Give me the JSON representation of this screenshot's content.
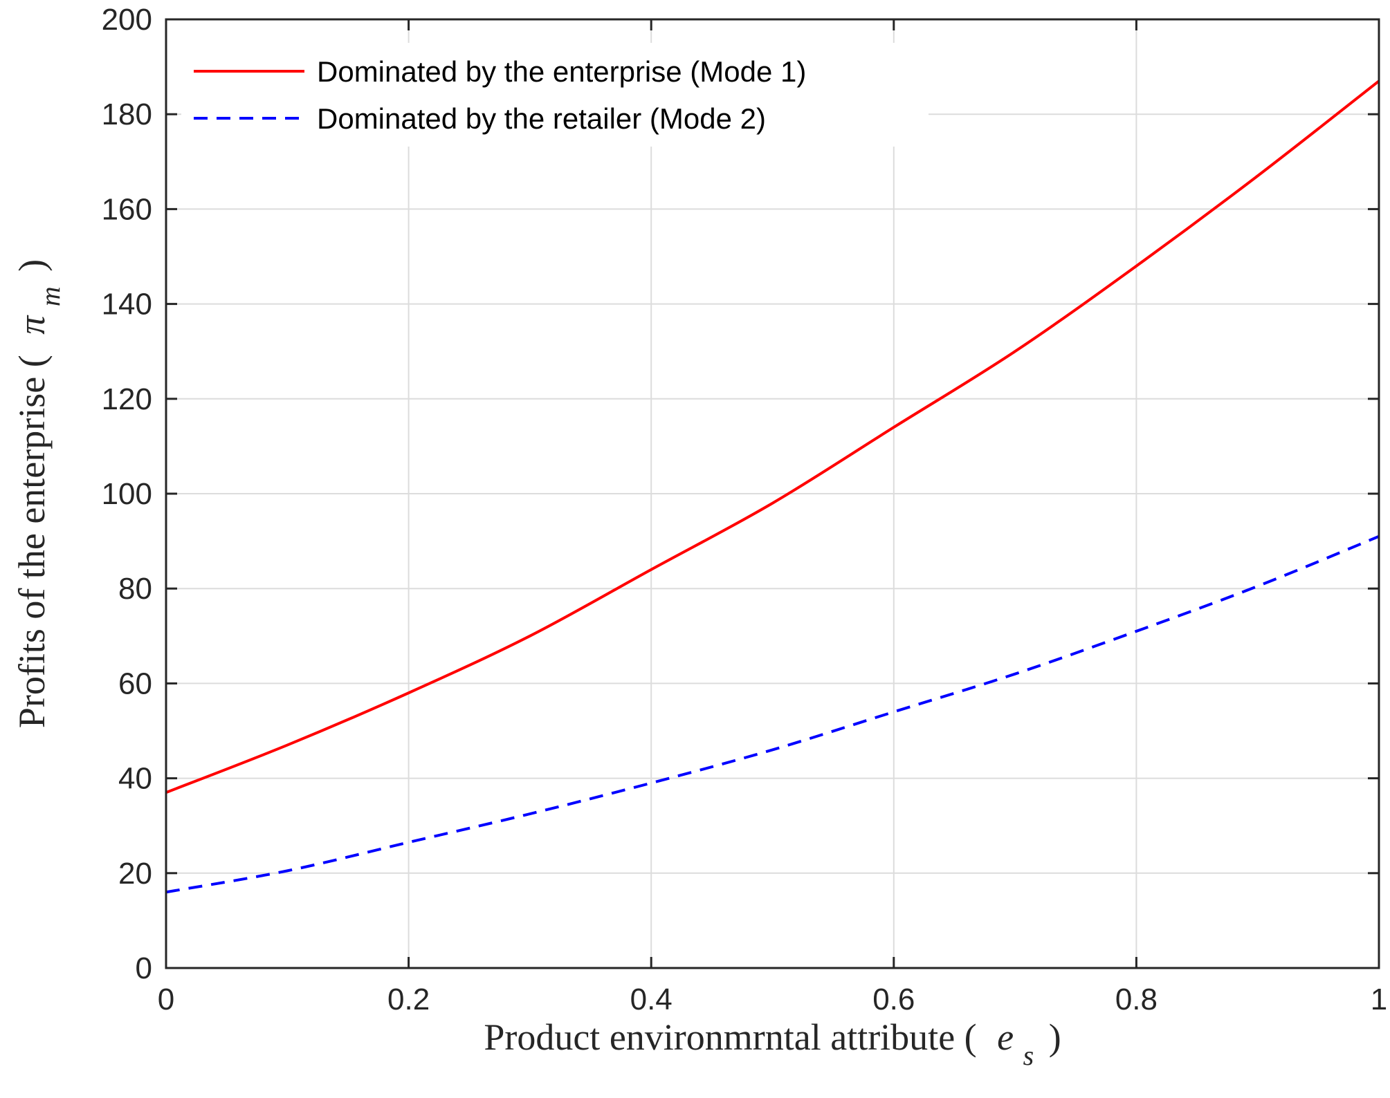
{
  "chart_data": {
    "type": "line",
    "title": "",
    "xlabel": {
      "text": "Product environmrntal attribute (",
      "symbol": "e",
      "subscript": "s",
      "close": ")"
    },
    "ylabel": {
      "text": "Profits of the enterprise (",
      "symbol": "π",
      "subscript": "m",
      "close": ")"
    },
    "xlim": [
      0,
      1
    ],
    "ylim": [
      0,
      200
    ],
    "xticks": [
      0,
      0.2,
      0.4,
      0.6,
      0.8,
      1
    ],
    "xtick_labels": [
      "0",
      "0.2",
      "0.4",
      "0.6",
      "0.8",
      "1"
    ],
    "yticks": [
      0,
      20,
      40,
      60,
      80,
      100,
      120,
      140,
      160,
      180,
      200
    ],
    "ytick_labels": [
      "0",
      "20",
      "40",
      "60",
      "80",
      "100",
      "120",
      "140",
      "160",
      "180",
      "200"
    ],
    "grid": true,
    "legend_position": "top-left",
    "x": [
      0,
      0.1,
      0.2,
      0.3,
      0.4,
      0.5,
      0.6,
      0.7,
      0.8,
      0.9,
      1.0
    ],
    "series": [
      {
        "name": "Dominated by the enterprise (Mode 1)",
        "style": "solid",
        "color": "#ff0000",
        "values": [
          37,
          47,
          58,
          70,
          84,
          98,
          114,
          130,
          148,
          167,
          187
        ]
      },
      {
        "name": "Dominated by the retailer (Mode 2)",
        "style": "dashed",
        "color": "#0000ff",
        "values": [
          16,
          20.5,
          26.5,
          32.5,
          39,
          46,
          54,
          62,
          71,
          80.5,
          91
        ]
      }
    ]
  }
}
